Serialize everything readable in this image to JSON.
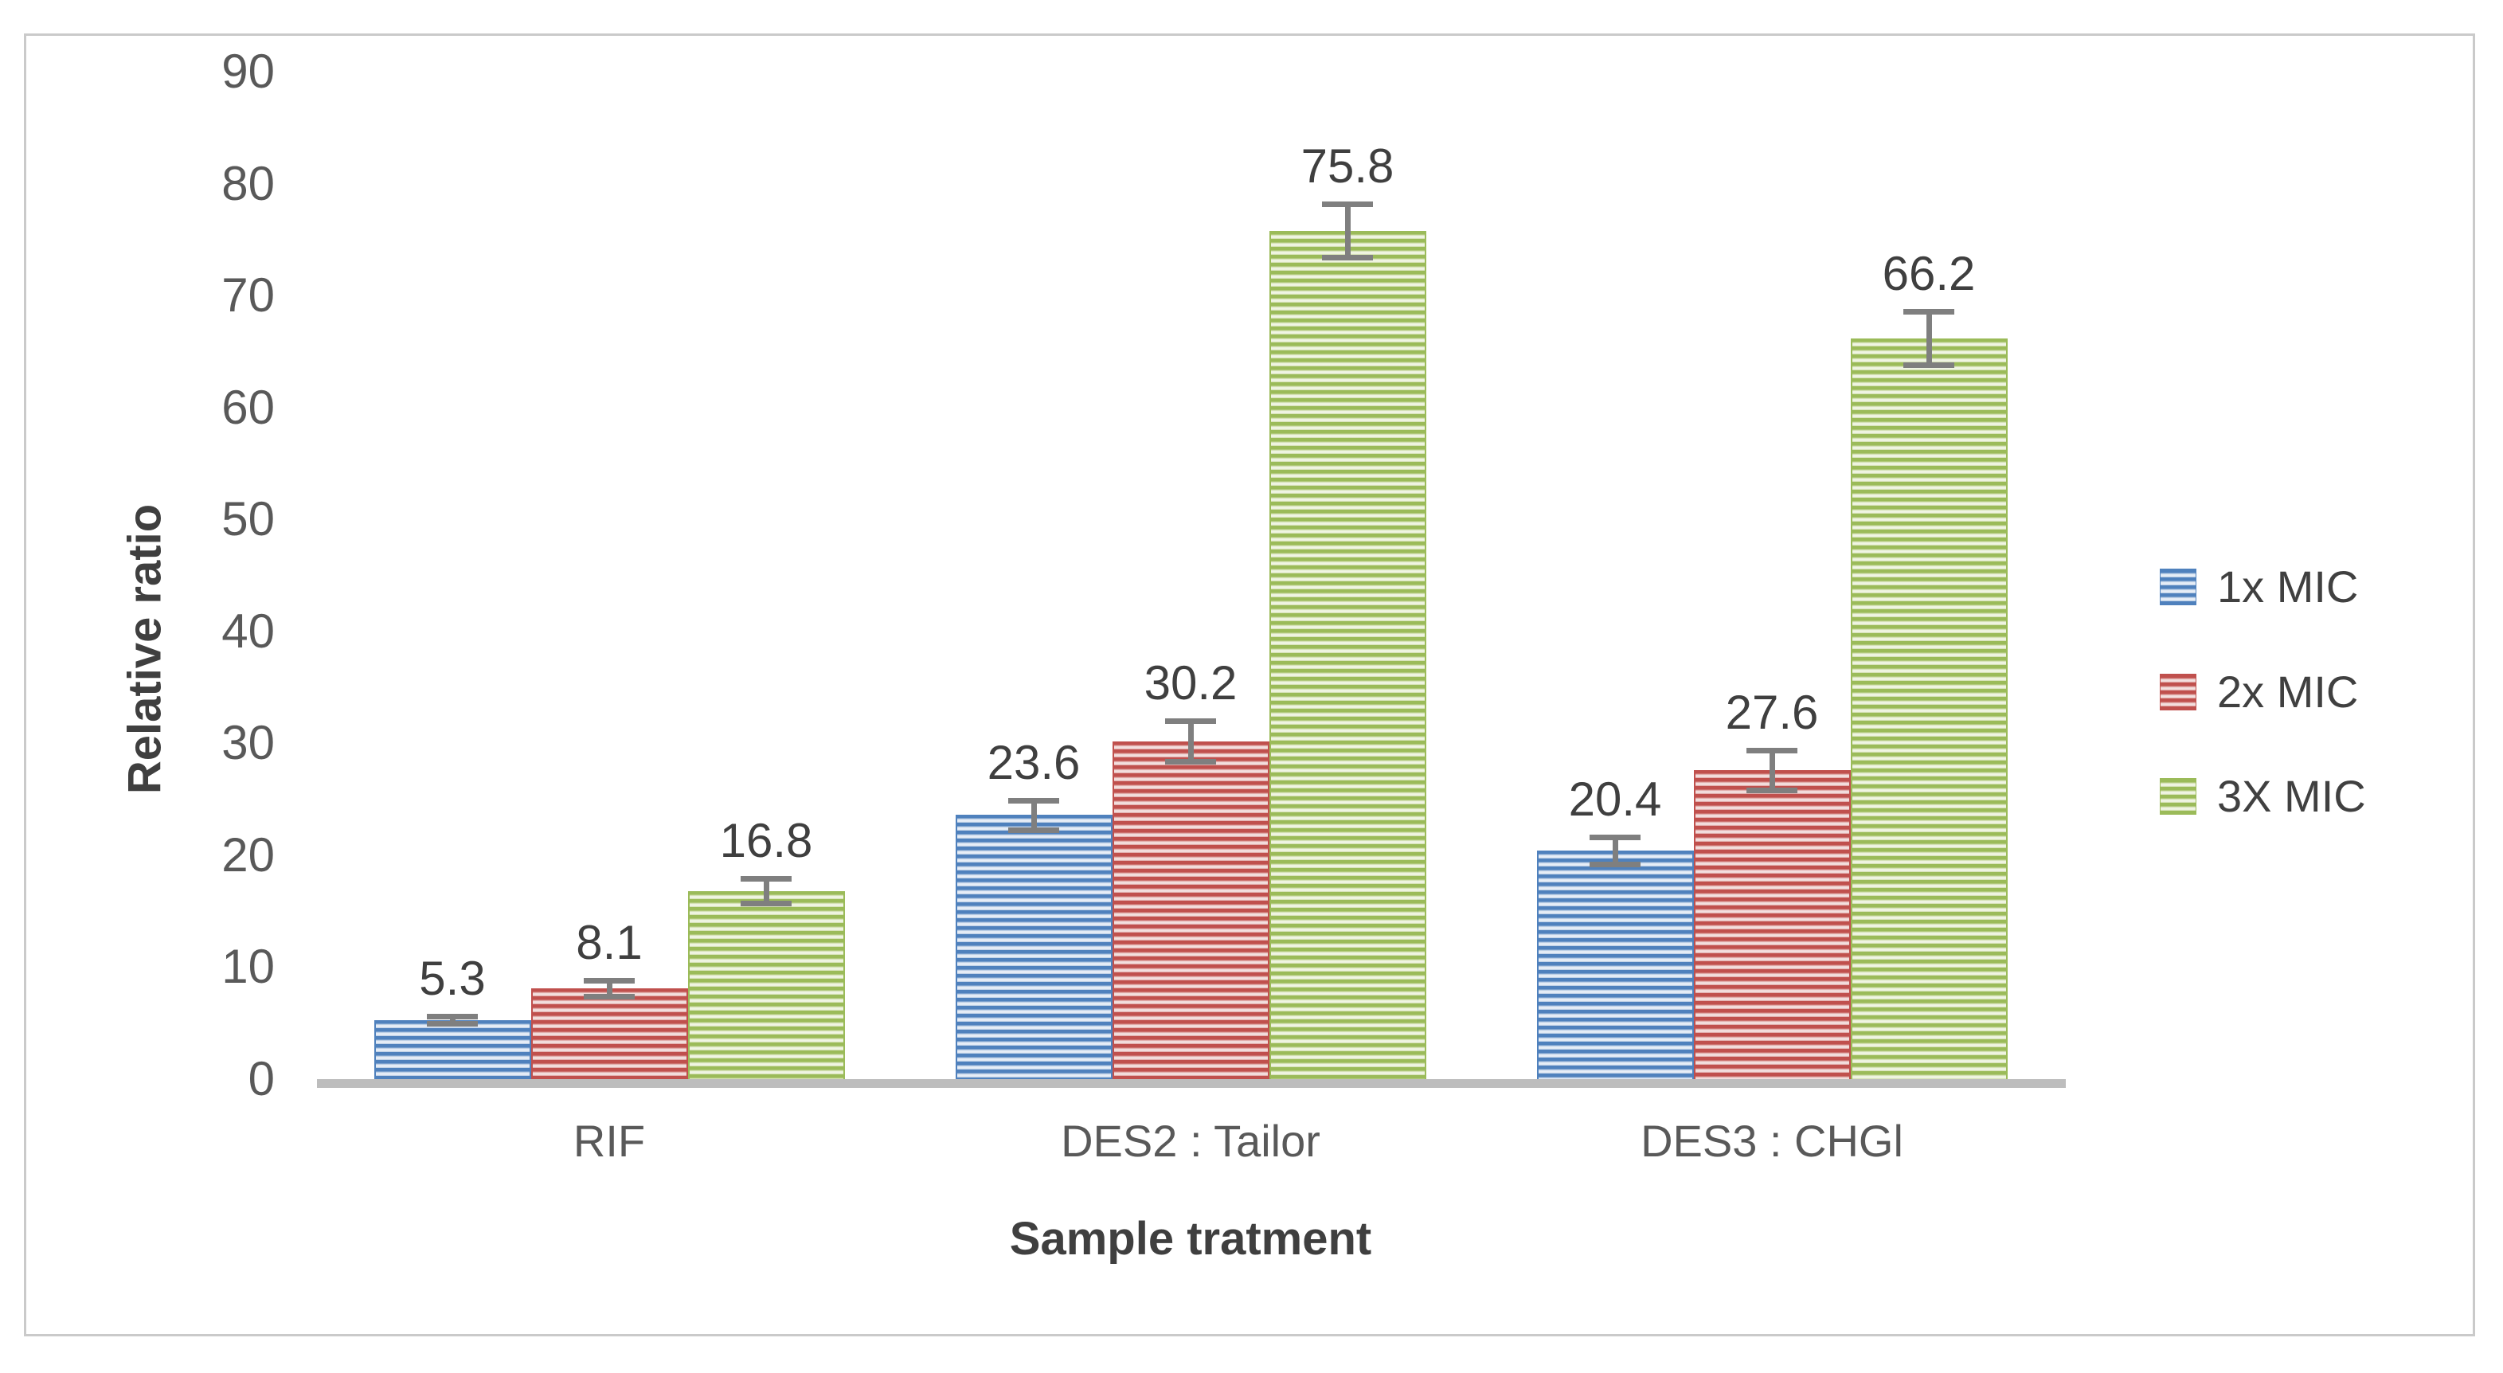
{
  "chart_data": {
    "type": "bar",
    "title": "",
    "xlabel": "Sample tratment",
    "ylabel": "Relative ratio",
    "ylim": [
      0,
      90
    ],
    "ytick_step": 10,
    "ytick_labels": [
      "0",
      "10",
      "20",
      "30",
      "40",
      "50",
      "60",
      "70",
      "80",
      "90"
    ],
    "grid": false,
    "legend_position": "right-middle",
    "categories": [
      "RIF",
      "DES2 : Tailor",
      "DES3 : CHGl"
    ],
    "series": [
      {
        "name": "1x MIC",
        "color": "#4F81BD",
        "stripe_mid": "#A9C1DE",
        "stripe_light": "#E7EEF7",
        "values": [
          5.3,
          23.6,
          20.4
        ],
        "errors": [
          0.3,
          1.3,
          1.2
        ]
      },
      {
        "name": "2x MIC",
        "color": "#C0504D",
        "stripe_mid": "#D99694",
        "stripe_light": "#F3E0DF",
        "values": [
          8.1,
          30.2,
          27.6
        ],
        "errors": [
          0.7,
          1.8,
          1.8
        ]
      },
      {
        "name": "3X MIC",
        "color": "#9BBB59",
        "stripe_mid": "#C9D9A1",
        "stripe_light": "#F0F5E4",
        "values": [
          16.8,
          75.8,
          66.2
        ],
        "errors": [
          1.1,
          2.4,
          2.4
        ]
      }
    ],
    "data_label_decimals": 1,
    "colors": {
      "axis_line": "#BDBDBD",
      "error_bar": "#7F7F7F",
      "tick_text": "#595959",
      "category_text": "#595959",
      "axis_title_text": "#3F3F3F",
      "data_label_text": "#3F3F3F",
      "legend_text": "#404040",
      "frame_border": "#CACACA",
      "background": "#FFFFFF"
    }
  }
}
